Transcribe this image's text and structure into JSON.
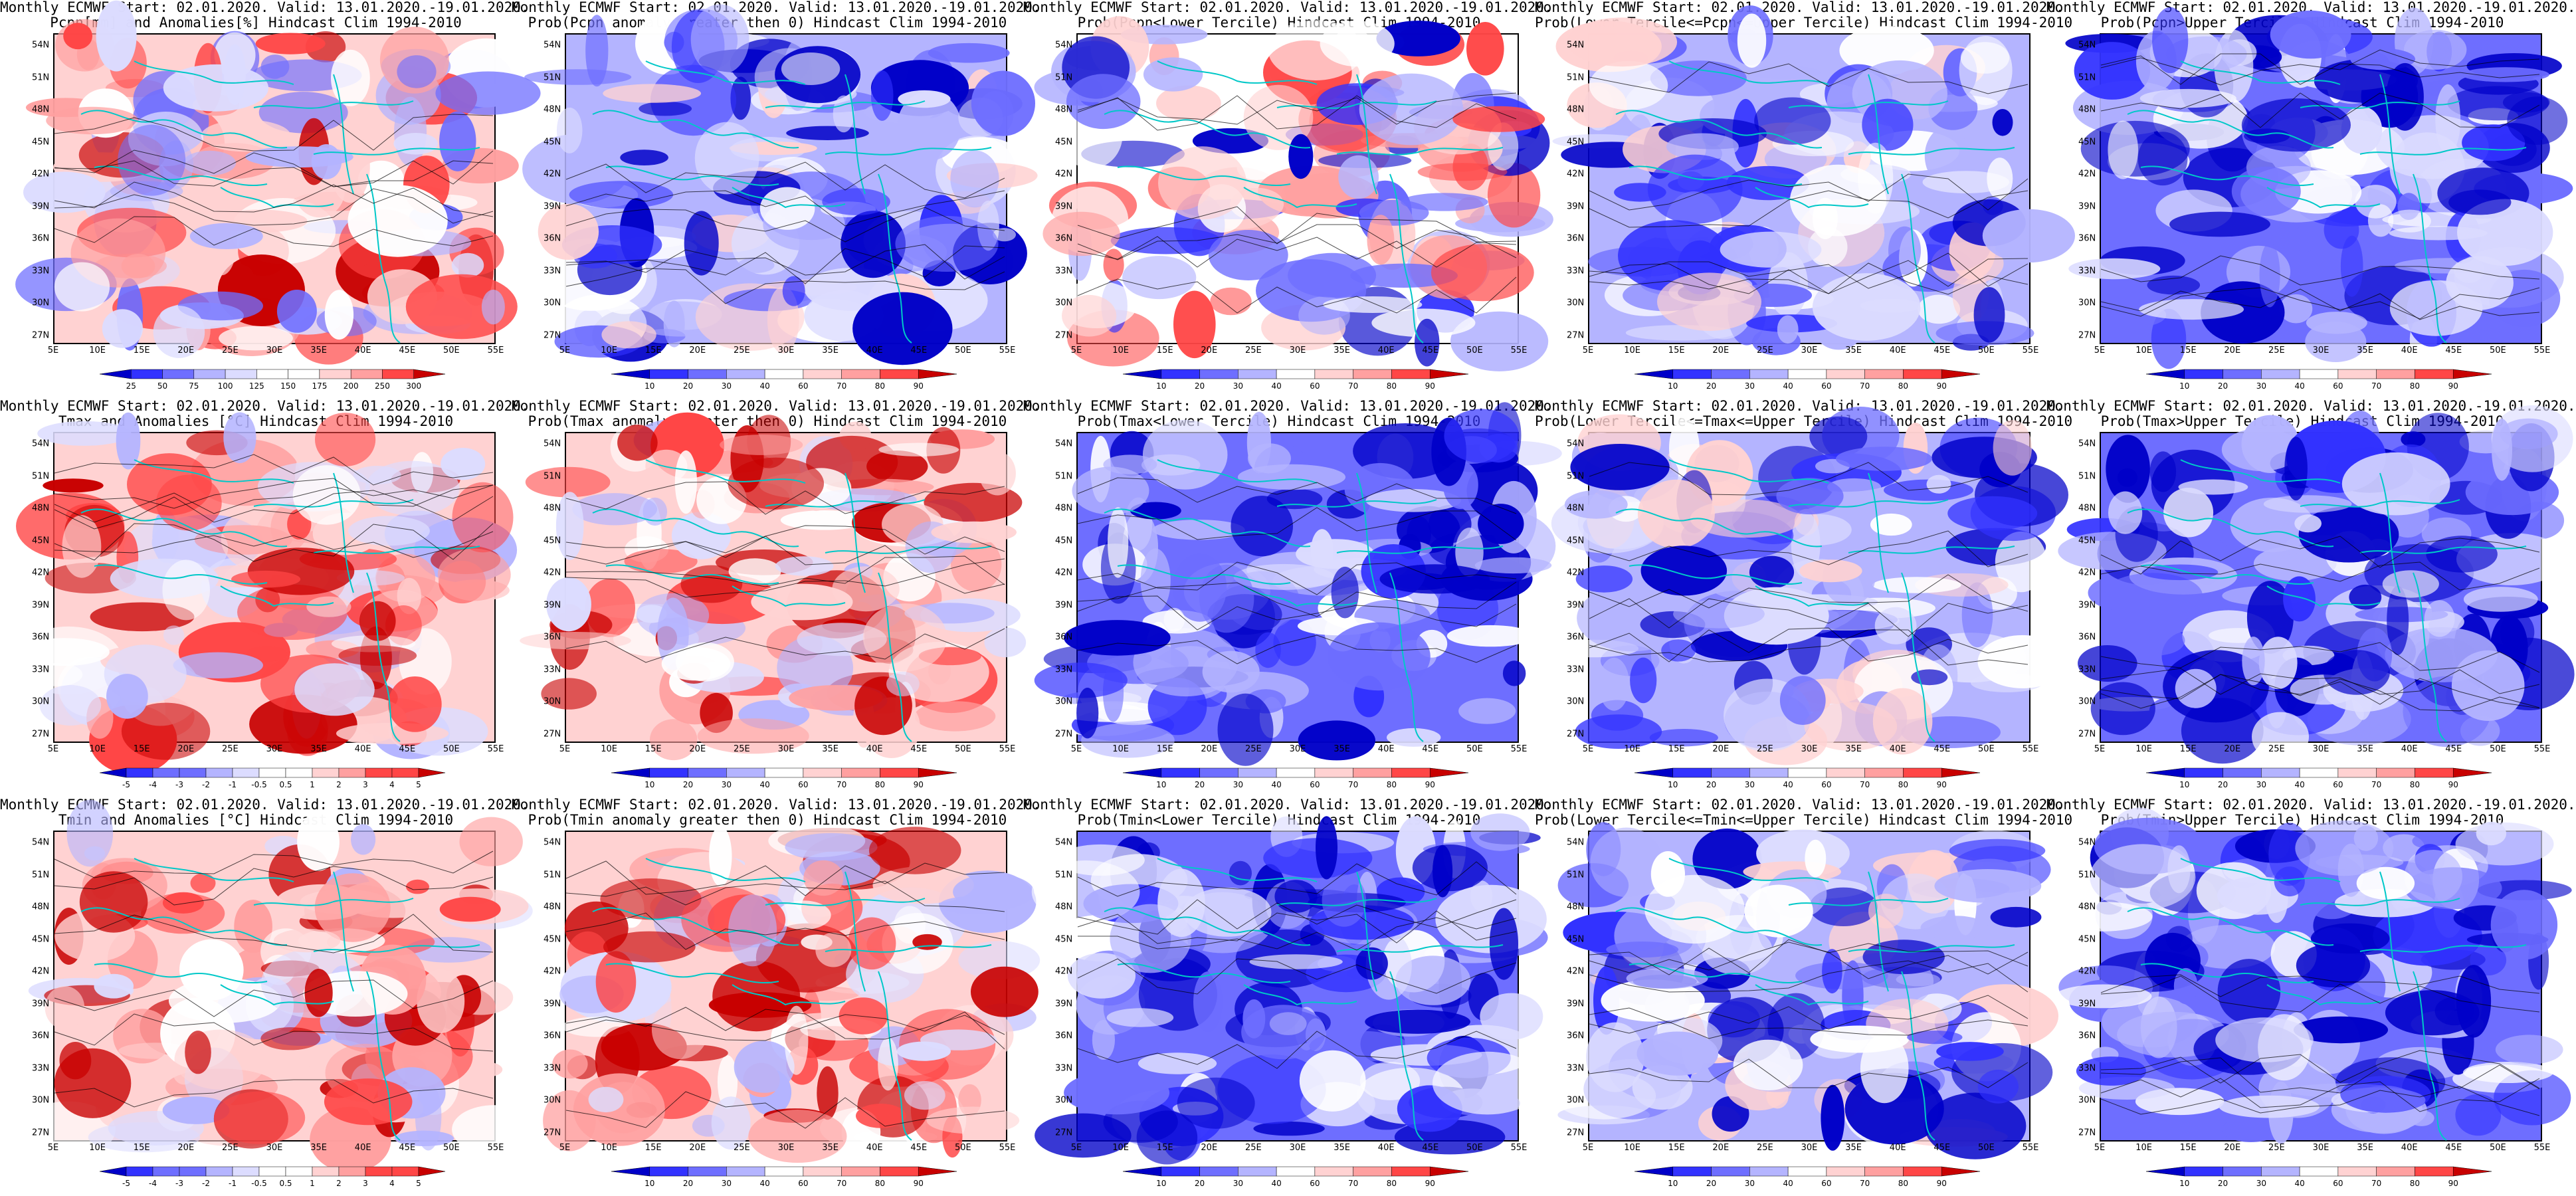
{
  "panels": [
    {
      "title": "Monthly ECMWF Start: 02.01.2020. Valid: 13.01.2020.-19.01.2020.\nPcpn[mm] and Anomalies[%] Hindcast Clim 1994-2010",
      "scheme": "anom",
      "colorbar": [
        "25",
        "50",
        "75",
        "100",
        "125",
        "150",
        "175",
        "200",
        "250",
        "300"
      ]
    },
    {
      "title": "Monthly ECMWF Start: 02.01.2020. Valid: 13.01.2020.-19.01.2020.\nProb(Pcpn anomaly greater then 0) Hindcast Clim 1994-2010",
      "scheme": "blue",
      "colorbar": [
        "10",
        "20",
        "30",
        "40",
        "60",
        "70",
        "80",
        "90"
      ]
    },
    {
      "title": "Monthly ECMWF Start: 02.01.2020. Valid: 13.01.2020.-19.01.2020.\nProb(Pcpn<Lower Tercile) Hindcast Clim 1994-2010",
      "scheme": "mixed",
      "colorbar": [
        "10",
        "20",
        "30",
        "40",
        "60",
        "70",
        "80",
        "90"
      ]
    },
    {
      "title": "Monthly ECMWF Start: 02.01.2020. Valid: 13.01.2020.-19.01.2020.\nProb(Lower Tercile<=Pcpn<=Upper Tercile) Hindcast Clim 1994-2010",
      "scheme": "blue",
      "colorbar": [
        "10",
        "20",
        "30",
        "40",
        "60",
        "70",
        "80",
        "90"
      ]
    },
    {
      "title": "Monthly ECMWF Start: 02.01.2020. Valid: 13.01.2020.-19.01.2020.\nProb(Pcpn>Upper Tercile) Hindcast Clim 1994-2010",
      "scheme": "deepblue",
      "colorbar": [
        "10",
        "20",
        "30",
        "40",
        "60",
        "70",
        "80",
        "90"
      ]
    },
    {
      "title": "Monthly ECMWF Start: 02.01.2020. Valid: 13.01.2020.-19.01.2020.\nTmax and Anomalies [°C] Hindcast Clim 1994-2010",
      "scheme": "warm",
      "colorbar": [
        "-5",
        "-4",
        "-3",
        "-2",
        "-1",
        "-0.5",
        "0.5",
        "1",
        "2",
        "3",
        "4",
        "5"
      ]
    },
    {
      "title": "Monthly ECMWF Start: 02.01.2020. Valid: 13.01.2020.-19.01.2020.\nProb(Tmax anomaly greater then 0) Hindcast Clim 1994-2010",
      "scheme": "warm",
      "colorbar": [
        "10",
        "20",
        "30",
        "40",
        "60",
        "70",
        "80",
        "90"
      ]
    },
    {
      "title": "Monthly ECMWF Start: 02.01.2020. Valid: 13.01.2020.-19.01.2020.\nProb(Tmax<Lower Tercile) Hindcast Clim 1994-2010",
      "scheme": "deepblue",
      "colorbar": [
        "10",
        "20",
        "30",
        "40",
        "60",
        "70",
        "80",
        "90"
      ]
    },
    {
      "title": "Monthly ECMWF Start: 02.01.2020. Valid: 13.01.2020.-19.01.2020.\nProb(Lower Tercile<=Tmax<=Upper Tercile) Hindcast Clim 1994-2010",
      "scheme": "blue",
      "colorbar": [
        "10",
        "20",
        "30",
        "40",
        "60",
        "70",
        "80",
        "90"
      ]
    },
    {
      "title": "Monthly ECMWF Start: 02.01.2020. Valid: 13.01.2020.-19.01.2020.\nProb(Tmax>Upper Tercile) Hindcast Clim 1994-2010",
      "scheme": "deepblue",
      "colorbar": [
        "10",
        "20",
        "30",
        "40",
        "60",
        "70",
        "80",
        "90"
      ]
    },
    {
      "title": "Monthly ECMWF Start: 02.01.2020. Valid: 13.01.2020.-19.01.2020.\nTmin and Anomalies [°C] Hindcast Clim 1994-2010",
      "scheme": "warm",
      "colorbar": [
        "-5",
        "-4",
        "-3",
        "-2",
        "-1",
        "-0.5",
        "0.5",
        "1",
        "2",
        "3",
        "4",
        "5"
      ]
    },
    {
      "title": "Monthly ECMWF Start: 02.01.2020. Valid: 13.01.2020.-19.01.2020.\nProb(Tmin anomaly greater then 0) Hindcast Clim 1994-2010",
      "scheme": "warm",
      "colorbar": [
        "10",
        "20",
        "30",
        "40",
        "60",
        "70",
        "80",
        "90"
      ]
    },
    {
      "title": "Monthly ECMWF Start: 02.01.2020. Valid: 13.01.2020.-19.01.2020.\nProb(Tmin<Lower Tercile) Hindcast Clim 1994-2010",
      "scheme": "deepblue",
      "colorbar": [
        "10",
        "20",
        "30",
        "40",
        "60",
        "70",
        "80",
        "90"
      ]
    },
    {
      "title": "Monthly ECMWF Start: 02.01.2020. Valid: 13.01.2020.-19.01.2020.\nProb(Lower Tercile<=Tmin<=Upper Tercile) Hindcast Clim 1994-2010",
      "scheme": "blue",
      "colorbar": [
        "10",
        "20",
        "30",
        "40",
        "60",
        "70",
        "80",
        "90"
      ]
    },
    {
      "title": "Monthly ECMWF Start: 02.01.2020. Valid: 13.01.2020.-19.01.2020.\nProb(Tmin>Upper Tercile) Hindcast Clim 1994-2010",
      "scheme": "deepblue",
      "colorbar": [
        "10",
        "20",
        "30",
        "40",
        "60",
        "70",
        "80",
        "90"
      ]
    }
  ],
  "lat_labels": [
    "54N",
    "51N",
    "48N",
    "45N",
    "42N",
    "39N",
    "36N",
    "33N",
    "30N",
    "27N"
  ],
  "lon_labels": [
    "5E",
    "10E",
    "15E",
    "20E",
    "25E",
    "30E",
    "35E",
    "40E",
    "45E",
    "50E",
    "55E"
  ],
  "colors": {
    "deep_blue": "#0000c8",
    "blue": "#3232ff",
    "mid_blue": "#6e6eff",
    "light_blue": "#b4b4ff",
    "pale_blue": "#dcdcff",
    "white": "#ffffff",
    "pale_red": "#ffd2d2",
    "light_red": "#ffa0a0",
    "red": "#ff4646",
    "dark_red": "#c80000",
    "coast": "#00c8c8",
    "contour": "#000000"
  }
}
